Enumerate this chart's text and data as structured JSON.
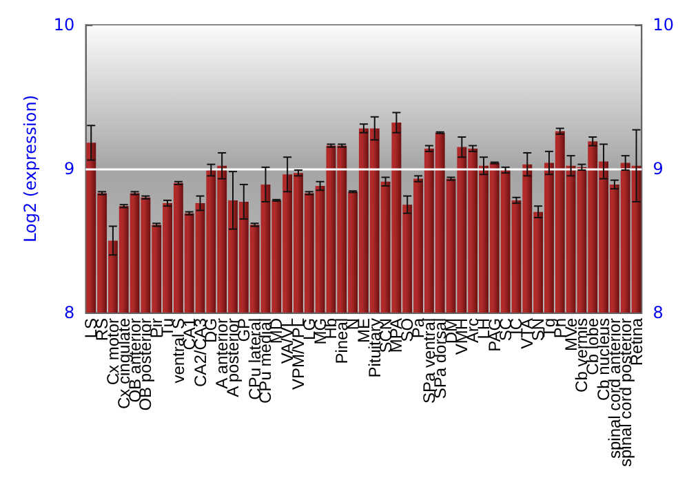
{
  "chart_data": {
    "type": "bar",
    "ylabel": "Log2 (expression)",
    "categories": [
      "LS",
      "RS",
      "Cx motor",
      "Cx cingulate",
      "OB anterior",
      "OB posterior",
      "Pir",
      "Tu",
      "ventral S",
      "CA1",
      "CA2/CA3",
      "DG",
      "A anterior",
      "A posterior",
      "GP",
      "CPu lateral",
      "CPu medial",
      "MD",
      "VA/VL",
      "VPM/VPL",
      "LG",
      "MG",
      "Hb",
      "Pineal",
      "N",
      "ME",
      "Pituitary",
      "SCN",
      "MPA",
      "SO",
      "Pa",
      "SPa ventral",
      "SPa dorsal",
      "DM",
      "VMH",
      "Arc",
      "LH",
      "PAG",
      "SC",
      "IC",
      "VTA",
      "SN",
      "Tg",
      "Pn",
      "MVe",
      "Cb vermis",
      "Cb lobe",
      "Cb nucleus",
      "spinal cord anterior",
      "spinal cord posterior",
      "Retina"
    ],
    "series": [
      {
        "color": "#b02a2a",
        "values": [
          9.18,
          8.83,
          8.5,
          8.74,
          8.83,
          8.8,
          8.61,
          8.76,
          8.9,
          8.69,
          8.76,
          8.99,
          9.02,
          8.78,
          8.77,
          8.61,
          8.89,
          8.78,
          8.96,
          8.97,
          8.83,
          8.88,
          9.16,
          9.16,
          8.84,
          9.28,
          9.28,
          8.91,
          9.32,
          8.75,
          8.93,
          9.14,
          9.25,
          8.93,
          9.15,
          9.14,
          9.02,
          9.04,
          8.99,
          8.78,
          9.03,
          8.7,
          9.04,
          9.26,
          9.02,
          9.01,
          9.19,
          9.05,
          8.89,
          9.04,
          9.02
        ],
        "errors": [
          0.12,
          0.01,
          0.1,
          0.01,
          0.01,
          0.01,
          0.01,
          0.02,
          0.01,
          0.01,
          0.05,
          0.04,
          0.09,
          0.2,
          0.12,
          0.01,
          0.12,
          0.005,
          0.12,
          0.02,
          0.01,
          0.03,
          0.01,
          0.01,
          0.005,
          0.03,
          0.08,
          0.03,
          0.07,
          0.06,
          0.02,
          0.02,
          0.005,
          0.01,
          0.07,
          0.02,
          0.06,
          0.005,
          0.02,
          0.02,
          0.08,
          0.04,
          0.08,
          0.02,
          0.07,
          0.02,
          0.03,
          0.12,
          0.03,
          0.05,
          0.25
        ]
      }
    ],
    "ylim": [
      8,
      10
    ],
    "yticks": [
      8,
      9,
      10
    ],
    "y2lim": [
      8,
      10
    ],
    "y2ticks": [
      8,
      9,
      10
    ],
    "grid": "y"
  }
}
